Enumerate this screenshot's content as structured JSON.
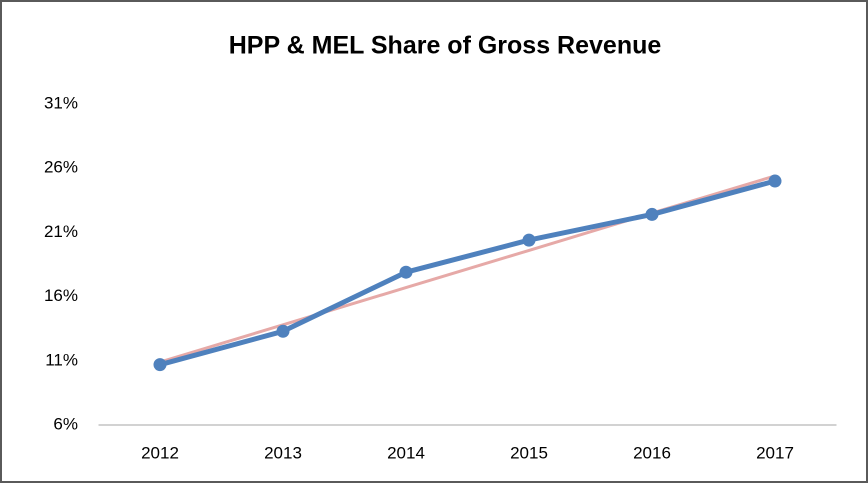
{
  "chart_data": {
    "type": "line",
    "title": "HPP & MEL Share of Gross Revenue",
    "categories": [
      "2012",
      "2013",
      "2014",
      "2015",
      "2016",
      "2017"
    ],
    "series": [
      {
        "color": "#4f81bd",
        "marker": true,
        "values": [
          10.7,
          13.3,
          17.9,
          20.4,
          22.4,
          25.0
        ]
      },
      {
        "color": "#e6a9a7",
        "marker": false,
        "values": [
          10.9,
          13.8,
          16.7,
          19.6,
          22.5,
          25.4
        ]
      }
    ],
    "ylim": [
      6,
      31
    ],
    "yticks": [
      {
        "value": 6,
        "label": "6%"
      },
      {
        "value": 11,
        "label": "11%"
      },
      {
        "value": 16,
        "label": "16%"
      },
      {
        "value": 21,
        "label": "21%"
      },
      {
        "value": 26,
        "label": "26%"
      },
      {
        "value": 31,
        "label": "31%"
      }
    ],
    "grid": false
  }
}
